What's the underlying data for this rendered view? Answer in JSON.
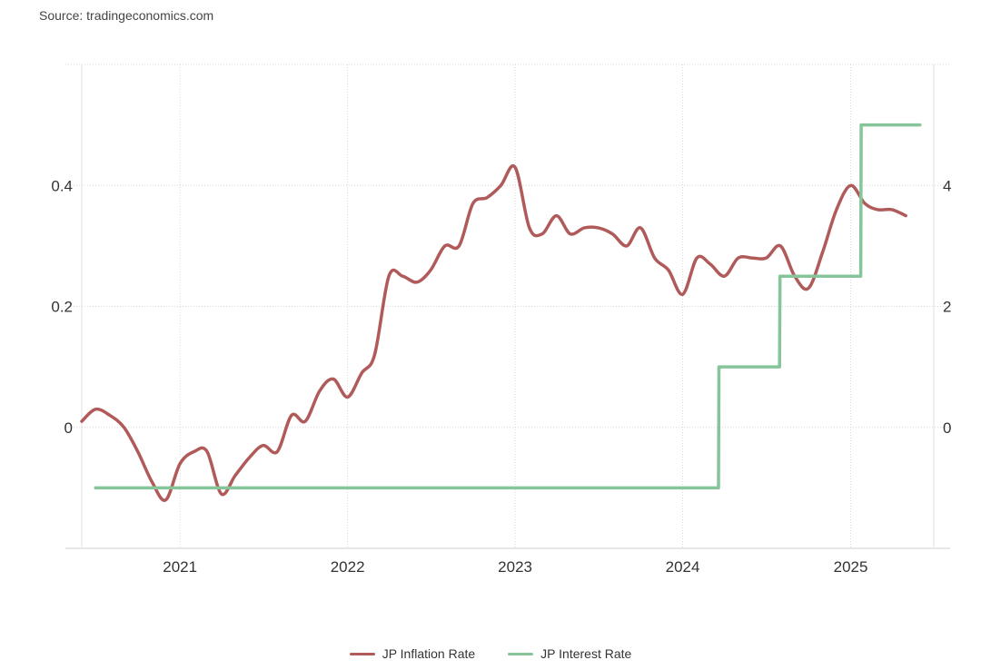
{
  "source": "Source: tradingeconomics.com",
  "chart_data": {
    "type": "line",
    "x_ticks": [
      "2021",
      "2022",
      "2023",
      "2024",
      "2025"
    ],
    "y_left_ticks": [
      "0",
      "0.2",
      "0.4"
    ],
    "y_right_ticks": [
      "0",
      "2",
      "4"
    ],
    "y_left_range": [
      -0.2,
      0.6
    ],
    "y_right_range": [
      -2,
      6
    ],
    "grid": true,
    "legend_position": "bottom-center",
    "series": [
      {
        "name": "JP Inflation Rate",
        "axis": "right",
        "color": "#b05a5a",
        "points": [
          [
            "2020-06",
            0.1
          ],
          [
            "2020-07",
            0.3
          ],
          [
            "2020-08",
            0.2
          ],
          [
            "2020-09",
            0.0
          ],
          [
            "2020-10",
            -0.4
          ],
          [
            "2020-11",
            -0.9
          ],
          [
            "2020-12",
            -1.2
          ],
          [
            "2021-01",
            -0.6
          ],
          [
            "2021-02",
            -0.4
          ],
          [
            "2021-03",
            -0.4
          ],
          [
            "2021-04",
            -1.1
          ],
          [
            "2021-05",
            -0.8
          ],
          [
            "2021-06",
            -0.5
          ],
          [
            "2021-07",
            -0.3
          ],
          [
            "2021-08",
            -0.4
          ],
          [
            "2021-09",
            0.2
          ],
          [
            "2021-10",
            0.1
          ],
          [
            "2021-11",
            0.6
          ],
          [
            "2021-12",
            0.8
          ],
          [
            "2022-01",
            0.5
          ],
          [
            "2022-02",
            0.9
          ],
          [
            "2022-03",
            1.2
          ],
          [
            "2022-04",
            2.5
          ],
          [
            "2022-05",
            2.5
          ],
          [
            "2022-06",
            2.4
          ],
          [
            "2022-07",
            2.6
          ],
          [
            "2022-08",
            3.0
          ],
          [
            "2022-09",
            3.0
          ],
          [
            "2022-10",
            3.7
          ],
          [
            "2022-11",
            3.8
          ],
          [
            "2022-12",
            4.0
          ],
          [
            "2023-01",
            4.3
          ],
          [
            "2023-02",
            3.3
          ],
          [
            "2023-03",
            3.2
          ],
          [
            "2023-04",
            3.5
          ],
          [
            "2023-05",
            3.2
          ],
          [
            "2023-06",
            3.3
          ],
          [
            "2023-07",
            3.3
          ],
          [
            "2023-08",
            3.2
          ],
          [
            "2023-09",
            3.0
          ],
          [
            "2023-10",
            3.3
          ],
          [
            "2023-11",
            2.8
          ],
          [
            "2023-12",
            2.6
          ],
          [
            "2024-01",
            2.2
          ],
          [
            "2024-02",
            2.8
          ],
          [
            "2024-03",
            2.7
          ],
          [
            "2024-04",
            2.5
          ],
          [
            "2024-05",
            2.8
          ],
          [
            "2024-06",
            2.8
          ],
          [
            "2024-07",
            2.8
          ],
          [
            "2024-08",
            3.0
          ],
          [
            "2024-09",
            2.5
          ],
          [
            "2024-10",
            2.3
          ],
          [
            "2024-11",
            2.9
          ],
          [
            "2024-12",
            3.6
          ],
          [
            "2025-01",
            4.0
          ],
          [
            "2025-02",
            3.7
          ],
          [
            "2025-03",
            3.6
          ],
          [
            "2025-04",
            3.6
          ],
          [
            "2025-05",
            3.5
          ]
        ]
      },
      {
        "name": "JP Interest Rate",
        "axis": "left",
        "color": "#86c59a",
        "points": [
          [
            "2020-07",
            -0.1
          ],
          [
            "2024-03-19",
            -0.1
          ],
          [
            "2024-03-20",
            0.1
          ],
          [
            "2024-07-30",
            0.1
          ],
          [
            "2024-07-31",
            0.25
          ],
          [
            "2025-01-23",
            0.25
          ],
          [
            "2025-01-24",
            0.5
          ],
          [
            "2025-06",
            0.5
          ]
        ]
      }
    ]
  }
}
